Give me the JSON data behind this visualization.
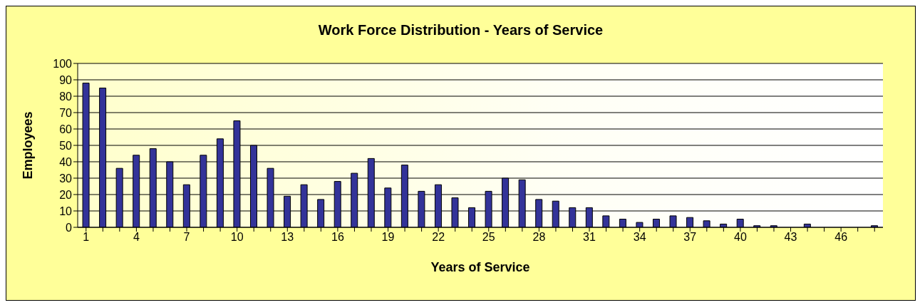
{
  "chart_data": {
    "type": "bar",
    "title": "Work Force Distribution - Years of Service",
    "xlabel": "Years of Service",
    "ylabel": "Employees",
    "categories": [
      "1",
      null,
      null,
      "4",
      null,
      null,
      "7",
      null,
      null,
      "10",
      null,
      null,
      "13",
      null,
      null,
      "16",
      null,
      null,
      "19",
      null,
      null,
      "22",
      null,
      null,
      "25",
      null,
      null,
      "28",
      null,
      null,
      "31",
      null,
      null,
      "34",
      null,
      null,
      "37",
      null,
      null,
      "40",
      null,
      null,
      "43",
      null,
      null,
      "46",
      null,
      null
    ],
    "values": [
      88,
      85,
      36,
      44,
      48,
      40,
      26,
      44,
      54,
      65,
      50,
      36,
      19,
      26,
      17,
      28,
      33,
      42,
      24,
      38,
      22,
      26,
      18,
      12,
      22,
      30,
      29,
      17,
      16,
      12,
      12,
      7,
      5,
      3,
      5,
      7,
      6,
      4,
      2,
      5,
      1,
      1,
      0,
      2,
      0,
      0,
      0,
      1
    ],
    "color": "#333399",
    "ylim": [
      0,
      100
    ],
    "yticks": [
      0,
      10,
      20,
      30,
      40,
      50,
      60,
      70,
      80,
      90,
      100
    ],
    "grid": "y"
  }
}
